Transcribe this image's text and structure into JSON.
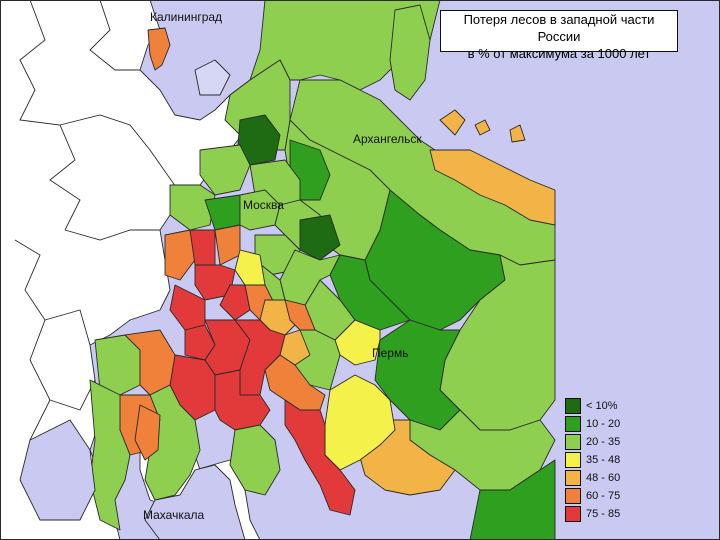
{
  "title": {
    "line1": "Потеря лесов в западной части России",
    "line2": "в % от максимума за 1000 лет"
  },
  "cities": {
    "kaliningrad": "Калининград",
    "arkhangelsk": "Архангельск",
    "moscow": "Москва",
    "perm": "Пермь",
    "makhachkala": "Махачкала"
  },
  "legend": [
    {
      "label": "< 10%",
      "color": "#1d6b12"
    },
    {
      "label": "10 - 20",
      "color": "#2e9f1f"
    },
    {
      "label": "20 - 35",
      "color": "#8fcf4f"
    },
    {
      "label": "35 - 48",
      "color": "#f4f24a"
    },
    {
      "label": "48 - 60",
      "color": "#f2b447"
    },
    {
      "label": "60 - 75",
      "color": "#f0813a"
    },
    {
      "label": "75 - 85",
      "color": "#e23a3a"
    }
  ],
  "colors": {
    "water": "#c9c9f2",
    "outside": "#ffffff",
    "lake": "#d6d6f5"
  }
}
